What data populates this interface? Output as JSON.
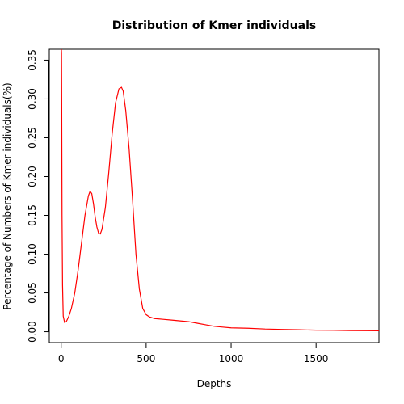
{
  "chart_data": {
    "type": "line",
    "title": "Distribution of Kmer individuals",
    "xlabel": "Depths",
    "ylabel": "Percentage of Numbers of Kmer individuals(%)",
    "xlim": [
      -70,
      1870
    ],
    "ylim": [
      -0.014,
      0.364
    ],
    "x_ticks": [
      0,
      500,
      1000,
      1500
    ],
    "x_tick_labels": [
      "0",
      "500",
      "1000",
      "1500"
    ],
    "y_ticks": [
      0.0,
      0.05,
      0.1,
      0.15,
      0.2,
      0.25,
      0.3,
      0.35
    ],
    "y_tick_labels": [
      "0.00",
      "0.05",
      "0.10",
      "0.15",
      "0.20",
      "0.25",
      "0.30",
      "0.35"
    ],
    "grid": false,
    "legend": "none",
    "series": [
      {
        "color": "#ff0000",
        "x": [
          1,
          2,
          3,
          5,
          8,
          12,
          20,
          30,
          45,
          60,
          80,
          100,
          120,
          140,
          160,
          170,
          180,
          190,
          200,
          210,
          220,
          230,
          240,
          260,
          280,
          300,
          320,
          340,
          355,
          365,
          380,
          400,
          420,
          440,
          460,
          480,
          500,
          520,
          550,
          600,
          650,
          700,
          750,
          800,
          850,
          900,
          950,
          1000,
          1100,
          1200,
          1300,
          1400,
          1500,
          1600,
          1700,
          1800,
          1870
        ],
        "y": [
          0.364,
          0.36,
          0.3,
          0.15,
          0.06,
          0.02,
          0.012,
          0.013,
          0.02,
          0.03,
          0.05,
          0.08,
          0.115,
          0.15,
          0.175,
          0.181,
          0.178,
          0.165,
          0.148,
          0.135,
          0.127,
          0.126,
          0.132,
          0.16,
          0.205,
          0.255,
          0.295,
          0.313,
          0.315,
          0.31,
          0.285,
          0.235,
          0.17,
          0.1,
          0.055,
          0.03,
          0.022,
          0.019,
          0.017,
          0.016,
          0.015,
          0.014,
          0.013,
          0.011,
          0.009,
          0.007,
          0.006,
          0.005,
          0.0045,
          0.0035,
          0.003,
          0.0025,
          0.002,
          0.0018,
          0.0015,
          0.0013,
          0.0012
        ]
      }
    ]
  }
}
